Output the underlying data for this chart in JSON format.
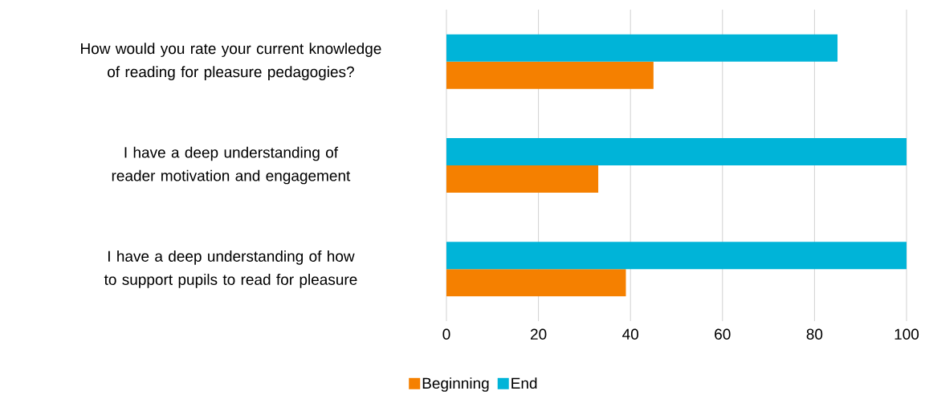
{
  "chart_data": {
    "type": "bar",
    "orientation": "horizontal",
    "categories": [
      "How would you rate your current knowledge of reading for pleasure pedagogies?",
      "I have a deep understanding of reader motivation and engagement",
      "I have a deep understanding of how to support pupils to read for pleasure"
    ],
    "series": [
      {
        "name": "Beginning",
        "color": "#f58000",
        "values": [
          45,
          33,
          39
        ]
      },
      {
        "name": "End",
        "color": "#00b4d8",
        "values": [
          85,
          100,
          100
        ]
      }
    ],
    "xlim": [
      0,
      100
    ],
    "xticks": [
      0,
      20,
      40,
      60,
      80,
      100
    ],
    "grid": "x",
    "legend": "bottom"
  }
}
